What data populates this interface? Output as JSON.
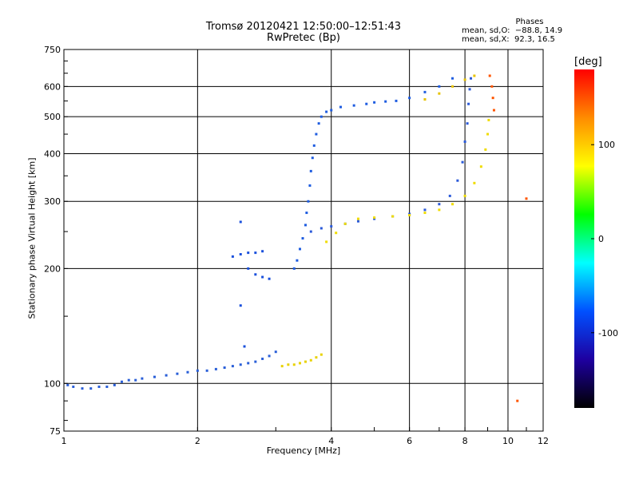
{
  "chart_data": {
    "type": "scatter",
    "title": "Tromsø 20120421 12:50:00–12:51:43",
    "subtitle": "RwPretec (Bp)",
    "xlabel": "Frequency [MHz]",
    "ylabel": "Stationary phase Virtual Height [km]",
    "x_scale": "log",
    "y_scale": "log",
    "xlim": [
      1,
      12
    ],
    "ylim": [
      75,
      750
    ],
    "x_ticks": [
      1,
      2,
      4,
      6,
      8,
      10,
      12
    ],
    "y_ticks": [
      75,
      100,
      200,
      300,
      400,
      500,
      600,
      750
    ],
    "grid": true,
    "phases_header": "Phases",
    "phases_rows": [
      "mean, sd,O:  −88.8, 14.9",
      "mean, sd,X:  92.3, 16.5"
    ],
    "colorbar": {
      "label": "[deg]",
      "range": [
        -180,
        180
      ],
      "ticks": [
        100,
        0,
        -100
      ],
      "colors": [
        "#ff0000",
        "#ff8c00",
        "#ffff00",
        "#00ff00",
        "#00ffff",
        "#0050ff",
        "#1e00a0",
        "#000000"
      ]
    },
    "series": [
      {
        "color": "#2a5fd8",
        "points": [
          [
            1.02,
            99
          ],
          [
            1.05,
            98
          ],
          [
            1.1,
            97
          ],
          [
            1.15,
            97
          ],
          [
            1.2,
            98
          ],
          [
            1.25,
            98
          ],
          [
            1.3,
            99
          ],
          [
            1.35,
            101
          ],
          [
            1.4,
            102
          ],
          [
            1.45,
            102
          ],
          [
            1.5,
            103
          ],
          [
            1.6,
            104
          ],
          [
            1.7,
            105
          ],
          [
            1.8,
            106
          ],
          [
            1.9,
            107
          ],
          [
            2.0,
            108
          ],
          [
            2.1,
            108
          ],
          [
            2.2,
            109
          ],
          [
            2.3,
            110
          ],
          [
            2.4,
            111
          ],
          [
            2.5,
            112
          ],
          [
            2.6,
            113
          ],
          [
            2.7,
            114
          ],
          [
            2.8,
            116
          ],
          [
            2.9,
            118
          ],
          [
            3.0,
            121
          ]
        ]
      },
      {
        "color": "#e8d200",
        "points": [
          [
            3.1,
            111
          ],
          [
            3.2,
            112
          ],
          [
            3.3,
            112
          ],
          [
            3.4,
            113
          ],
          [
            3.5,
            114
          ],
          [
            3.6,
            115
          ],
          [
            3.7,
            117
          ],
          [
            3.8,
            119
          ]
        ]
      },
      {
        "color": "#1e5ce0",
        "points": [
          [
            3.3,
            200
          ],
          [
            3.35,
            210
          ],
          [
            3.4,
            225
          ],
          [
            3.45,
            240
          ],
          [
            3.5,
            260
          ],
          [
            3.52,
            280
          ],
          [
            3.55,
            300
          ],
          [
            3.58,
            330
          ],
          [
            3.6,
            360
          ],
          [
            3.63,
            390
          ],
          [
            3.66,
            420
          ],
          [
            3.7,
            450
          ],
          [
            3.75,
            480
          ],
          [
            3.8,
            500
          ],
          [
            3.9,
            515
          ],
          [
            4.0,
            520
          ],
          [
            4.2,
            530
          ],
          [
            4.5,
            535
          ],
          [
            4.8,
            540
          ],
          [
            5.0,
            545
          ],
          [
            5.3,
            548
          ],
          [
            5.6,
            550
          ],
          [
            6.0,
            560
          ],
          [
            6.5,
            580
          ],
          [
            7.0,
            600
          ],
          [
            7.5,
            630
          ]
        ]
      },
      {
        "color": "#2b5ad9",
        "points": [
          [
            3.6,
            250
          ],
          [
            3.8,
            255
          ],
          [
            4.0,
            258
          ],
          [
            4.3,
            262
          ],
          [
            4.6,
            266
          ],
          [
            5.0,
            270
          ],
          [
            5.5,
            274
          ],
          [
            6.0,
            278
          ],
          [
            6.5,
            285
          ],
          [
            7.0,
            295
          ],
          [
            7.4,
            310
          ],
          [
            7.7,
            340
          ],
          [
            7.9,
            380
          ],
          [
            8.0,
            430
          ],
          [
            8.1,
            480
          ],
          [
            8.15,
            540
          ],
          [
            8.2,
            590
          ],
          [
            8.25,
            630
          ]
        ]
      },
      {
        "color": "#f0dc00",
        "points": [
          [
            3.9,
            235
          ],
          [
            4.1,
            248
          ],
          [
            4.3,
            262
          ],
          [
            4.6,
            270
          ],
          [
            5.0,
            272
          ],
          [
            5.5,
            274
          ],
          [
            6.0,
            276
          ],
          [
            6.5,
            280
          ],
          [
            7.0,
            285
          ],
          [
            7.5,
            295
          ],
          [
            8.0,
            310
          ],
          [
            8.4,
            335
          ],
          [
            8.7,
            370
          ],
          [
            8.9,
            410
          ],
          [
            9.0,
            450
          ],
          [
            9.05,
            490
          ]
        ]
      },
      {
        "color": "#1a50dc",
        "points": [
          [
            2.4,
            215
          ],
          [
            2.5,
            218
          ],
          [
            2.6,
            220
          ],
          [
            2.7,
            220
          ],
          [
            2.8,
            222
          ],
          [
            2.6,
            200
          ],
          [
            2.7,
            193
          ],
          [
            2.8,
            190
          ],
          [
            2.9,
            188
          ],
          [
            2.5,
            265
          ],
          [
            2.5,
            160
          ],
          [
            2.55,
            125
          ]
        ]
      },
      {
        "color": "#e6c200",
        "points": [
          [
            6.5,
            555
          ],
          [
            7.0,
            575
          ],
          [
            7.5,
            600
          ],
          [
            8.0,
            625
          ],
          [
            8.4,
            640
          ]
        ]
      },
      {
        "color": "#ff5500",
        "points": [
          [
            9.1,
            640
          ],
          [
            9.2,
            600
          ],
          [
            9.25,
            560
          ],
          [
            9.3,
            520
          ],
          [
            10.5,
            90
          ],
          [
            11.0,
            305
          ]
        ]
      }
    ]
  }
}
